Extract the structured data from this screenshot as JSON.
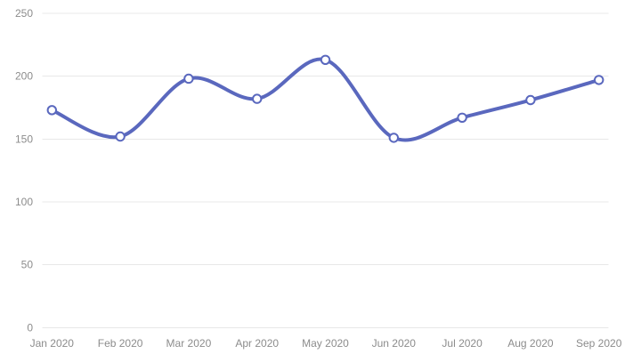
{
  "chart_data": {
    "type": "line",
    "categories": [
      "Jan 2020",
      "Feb 2020",
      "Mar 2020",
      "Apr 2020",
      "May 2020",
      "Jun 2020",
      "Jul 2020",
      "Aug 2020",
      "Sep 2020"
    ],
    "values": [
      173,
      152,
      198,
      182,
      213,
      151,
      167,
      181,
      197
    ],
    "yticks": [
      0,
      50,
      100,
      150,
      200,
      250
    ],
    "ytick_labels": [
      "0",
      "50",
      "100",
      "150",
      "200",
      "250"
    ],
    "ylim": [
      0,
      250
    ],
    "curve": "smooth",
    "markers": true,
    "grid": "horizontal-only",
    "legend": "none",
    "colors": {
      "line": "#5a68be",
      "marker_fill": "#ffffff",
      "marker_stroke": "#5a68be",
      "gridline": "#e8e8e8",
      "axis_label": "#8c8c8c",
      "background": "#ffffff"
    }
  }
}
